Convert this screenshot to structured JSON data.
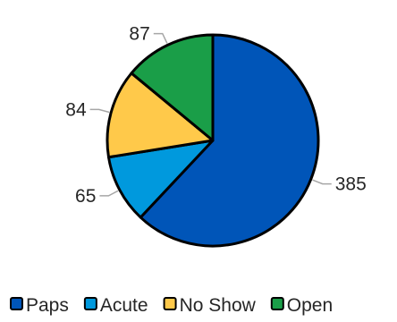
{
  "chart_data": {
    "type": "pie",
    "title": "",
    "categories": [
      "Paps",
      "Acute",
      "No Show",
      "Open"
    ],
    "values": [
      385,
      65,
      84,
      87
    ],
    "colors": [
      "#0055b8",
      "#0099dd",
      "#ffc94a",
      "#1a9e48"
    ],
    "data_labels": [
      "385",
      "65",
      "84",
      "87"
    ],
    "legend_labels": [
      "Paps",
      "Acute",
      "No Show",
      "Open"
    ],
    "legend_position": "bottom",
    "start_angle": "12 o'clock",
    "direction": "clockwise"
  }
}
